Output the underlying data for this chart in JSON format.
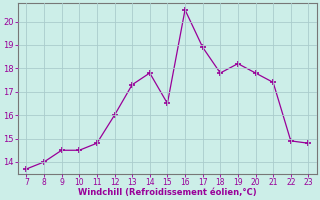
{
  "x": [
    7,
    8,
    9,
    10,
    11,
    12,
    13,
    14,
    15,
    16,
    17,
    18,
    19,
    20,
    21,
    22,
    23
  ],
  "y": [
    13.7,
    14.0,
    14.5,
    14.5,
    14.8,
    16.0,
    17.3,
    17.8,
    16.5,
    20.5,
    18.9,
    17.8,
    18.2,
    17.8,
    17.4,
    14.9,
    14.8
  ],
  "line_color": "#990099",
  "marker_color": "#990099",
  "bg_color": "#cceee8",
  "grid_color": "#aacccc",
  "axis_color": "#990099",
  "spine_color": "#777777",
  "xlabel": "Windchill (Refroidissement éolien,°C)",
  "ylim": [
    13.5,
    20.8
  ],
  "xlim": [
    6.5,
    23.5
  ],
  "yticks": [
    14,
    15,
    16,
    17,
    18,
    19,
    20
  ],
  "xticks": [
    7,
    8,
    9,
    10,
    11,
    12,
    13,
    14,
    15,
    16,
    17,
    18,
    19,
    20,
    21,
    22,
    23
  ]
}
